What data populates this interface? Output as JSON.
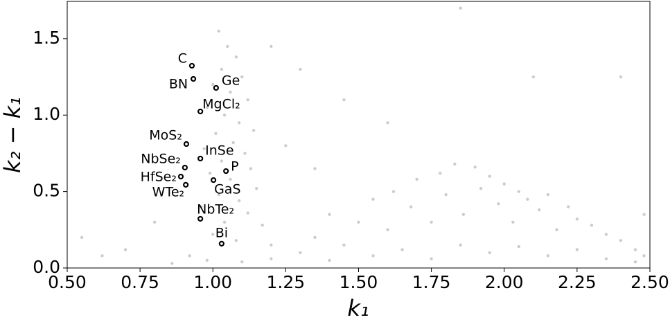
{
  "chart_data": {
    "type": "scatter",
    "x_label": "k₁",
    "y_label": "k₂ − k₁",
    "xlim": [
      0.5,
      2.5
    ],
    "ylim": [
      0,
      1.744
    ],
    "xticks": [
      {
        "value": 0.5,
        "label": "0.50"
      },
      0.75,
      {
        "value": 1.0,
        "label": "1.00"
      },
      1.25,
      {
        "value": 1.5,
        "label": "1.50"
      },
      1.75,
      {
        "value": 2.0,
        "label": "2.00"
      },
      2.25,
      {
        "value": 2.5,
        "label": "2.50"
      }
    ],
    "yticks": [
      {
        "value": 0,
        "label": "0.0"
      },
      0.5,
      {
        "value": 1.0,
        "label": "1.0"
      },
      1.5
    ],
    "series": [
      {
        "color": "#cccccc",
        "x": [
          1.02,
          1.05,
          1.08,
          1.03,
          1.1,
          1.0,
          1.06,
          1.12,
          0.98,
          1.04,
          1.09,
          1.14,
          1.01,
          1.07,
          0.97,
          1.11,
          1.03,
          1.13,
          0.99,
          1.06,
          1.15,
          1.02,
          1.09,
          0.96,
          1.12,
          1.04,
          1.17,
          1.0,
          1.08,
          1.2,
          1.35,
          1.4,
          1.45,
          1.5,
          1.55,
          1.6,
          1.62,
          1.68,
          1.7,
          1.75,
          1.78,
          1.8,
          1.83,
          1.86,
          1.9,
          1.92,
          1.95,
          1.98,
          2.0,
          2.03,
          2.05,
          2.08,
          2.12,
          2.15,
          2.18,
          2.22,
          2.25,
          2.3,
          2.35,
          2.4,
          2.45,
          2.48,
          0.86,
          0.92,
          0.98,
          1.1,
          1.2,
          1.3,
          1.4,
          1.55,
          1.65,
          1.75,
          1.85,
          1.95,
          2.05,
          2.15,
          2.25,
          2.35,
          2.45,
          0.55,
          0.62,
          0.7,
          0.8,
          1.2,
          1.3,
          1.45,
          1.6,
          1.85,
          2.1,
          2.4,
          2.48,
          1.25,
          1.35
        ],
        "y": [
          1.55,
          1.45,
          1.38,
          1.3,
          1.25,
          1.2,
          1.15,
          1.1,
          1.05,
          1.0,
          0.95,
          0.9,
          0.88,
          0.82,
          0.78,
          0.75,
          0.7,
          0.65,
          0.62,
          0.58,
          0.52,
          0.48,
          0.44,
          0.4,
          0.36,
          0.3,
          0.28,
          0.22,
          0.18,
          0.15,
          0.2,
          0.35,
          0.15,
          0.3,
          0.45,
          0.25,
          0.5,
          0.4,
          0.58,
          0.3,
          0.62,
          0.48,
          0.68,
          0.35,
          0.66,
          0.52,
          0.6,
          0.42,
          0.55,
          0.3,
          0.5,
          0.45,
          0.38,
          0.48,
          0.25,
          0.4,
          0.32,
          0.28,
          0.22,
          0.18,
          0.12,
          0.08,
          0.03,
          0.08,
          0.05,
          0.04,
          0.06,
          0.1,
          0.05,
          0.08,
          0.12,
          0.06,
          0.15,
          0.1,
          0.14,
          0.08,
          0.12,
          0.06,
          0.04,
          0.2,
          0.08,
          0.12,
          0.3,
          1.45,
          1.3,
          1.1,
          0.95,
          1.7,
          1.25,
          1.25,
          0.35,
          0.8,
          0.65
        ]
      },
      {
        "color": "#000000",
        "point_labels": [
          "C",
          "BN",
          "Ge",
          "MgCl₂",
          "MoS₂",
          "InSe",
          "NbSe₂",
          "P",
          "HfSe₂",
          "GaS",
          "WTe₂",
          "NbTe₂",
          "Bi"
        ],
        "x": [
          0.928,
          0.933,
          1.011,
          0.957,
          0.909,
          0.957,
          0.904,
          1.045,
          0.89,
          1.002,
          0.907,
          0.957,
          1.03
        ],
        "y": [
          1.323,
          1.237,
          1.178,
          1.024,
          0.811,
          0.716,
          0.657,
          0.634,
          0.598,
          0.575,
          0.544,
          0.322,
          0.159
        ]
      }
    ]
  }
}
